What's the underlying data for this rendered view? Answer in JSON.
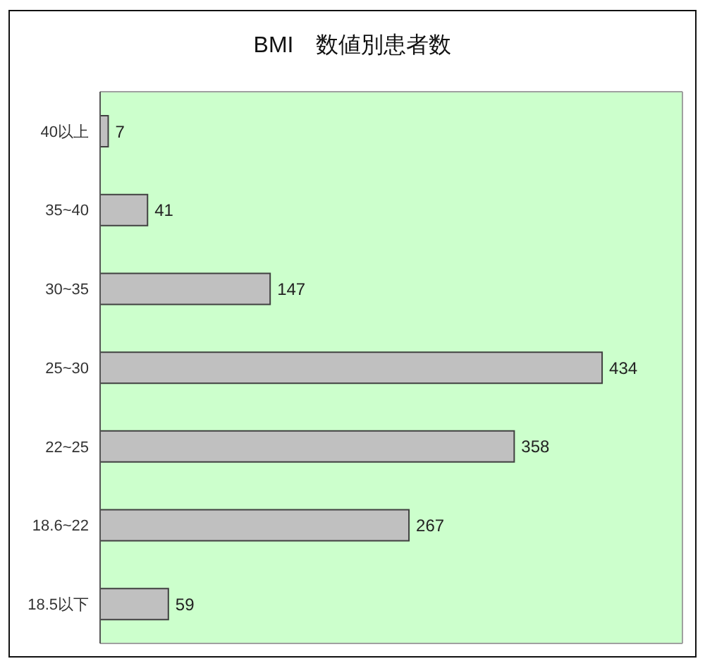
{
  "chart_data": {
    "type": "bar",
    "orientation": "horizontal",
    "title": "BMI　数値別患者数",
    "categories": [
      "40以上",
      "35~40",
      "30~35",
      "25~30",
      "22~25",
      "18.6~22",
      "18.5以下"
    ],
    "values": [
      7,
      41,
      147,
      434,
      358,
      267,
      59
    ],
    "color": "#c0c0c0",
    "data_labels": true
  }
}
